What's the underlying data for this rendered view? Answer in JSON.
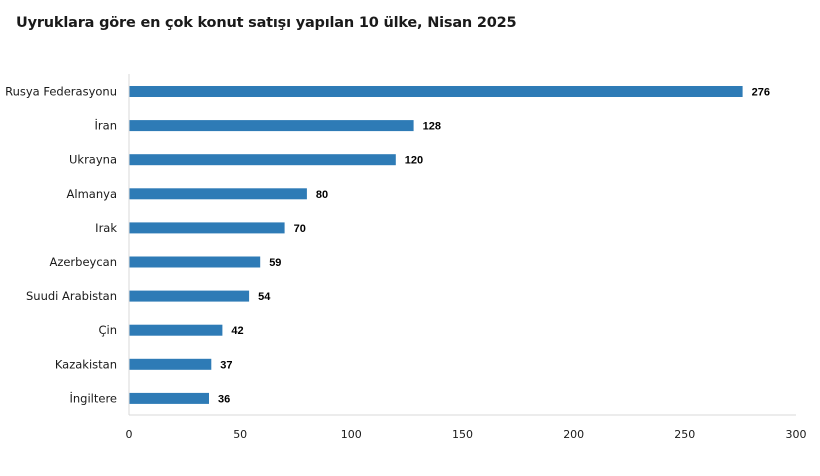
{
  "chart_data": {
    "type": "bar",
    "orientation": "horizontal",
    "title": "Uyruklara göre en çok konut satışı yapılan 10 ülke, Nisan 2025",
    "categories": [
      "Rusya Federasyonu",
      "İran",
      "Ukrayna",
      "Almanya",
      "Irak",
      "Azerbeycan",
      "Suudi Arabistan",
      "Çin",
      "Kazakistan",
      "İngiltere"
    ],
    "values": [
      276,
      128,
      120,
      80,
      70,
      59,
      54,
      42,
      37,
      36
    ],
    "xlim": [
      0,
      300
    ],
    "xticks": [
      0,
      50,
      100,
      150,
      200,
      250,
      300
    ],
    "bar_color": "#2e7bb6",
    "grid": false,
    "data_labels": true
  }
}
